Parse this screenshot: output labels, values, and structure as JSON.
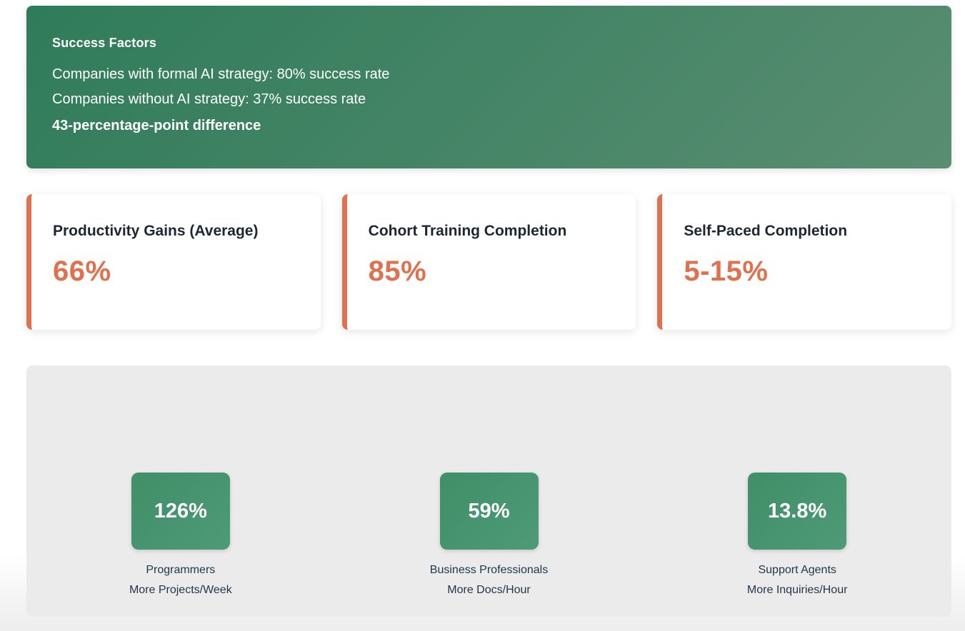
{
  "banner": {
    "title": "Success Factors",
    "lines": [
      "Companies with formal AI strategy: 80% success rate",
      "Companies without AI strategy: 37% success rate"
    ],
    "highlight": "43-percentage-point difference"
  },
  "stat_cards": [
    {
      "title": "Productivity Gains (Average)",
      "value": "66%"
    },
    {
      "title": "Cohort Training Completion",
      "value": "85%"
    },
    {
      "title": "Self-Paced Completion",
      "value": "5-15%"
    }
  ],
  "chart_data": {
    "type": "bar",
    "title": "",
    "categories": [
      "Programmers",
      "Business Professionals",
      "Support Agents"
    ],
    "values": [
      126,
      59,
      13.8
    ],
    "value_labels": [
      "126%",
      "59%",
      "13.8%"
    ],
    "unit_labels": [
      "More Projects/Week",
      "More Docs/Hour",
      "More Inquiries/Hour"
    ],
    "legend_position": "none",
    "grid": false
  },
  "colors": {
    "banner_green_start": "#2f7c5a",
    "banner_green_end": "#5a8d72",
    "accent_coral": "#e0714e",
    "badge_green": "#479470",
    "panel_gray": "#ebebeb",
    "dark_text": "#1d2733"
  }
}
